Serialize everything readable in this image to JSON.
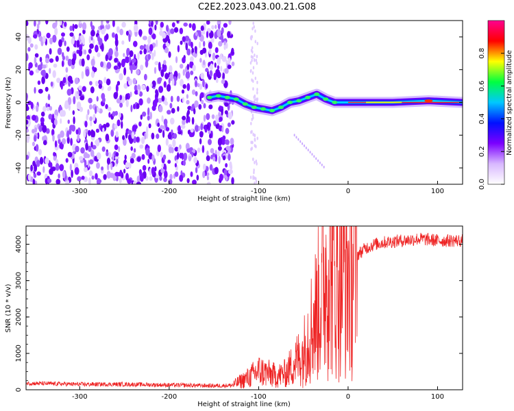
{
  "title": "C2E2.2023.043.00.21.G08",
  "chart_data": [
    {
      "type": "heatmap",
      "xlabel": "Height of straight line (km)",
      "ylabel": "Frequency (Hz)",
      "xlim": [
        -360,
        128
      ],
      "ylim": [
        -50,
        50
      ],
      "xticks": [
        -300,
        -200,
        -100,
        0,
        100
      ],
      "yticks": [
        -40,
        -20,
        0,
        20,
        40
      ],
      "colorbar": {
        "label": "Normalized spectral amplitude",
        "range": [
          0,
          1
        ],
        "ticks": [
          0.0,
          0.2,
          0.4,
          0.6,
          0.8
        ],
        "colormap": [
          "#ffffff",
          "#d8b8ff",
          "#7b00ff",
          "#0010ff",
          "#00c8ff",
          "#00ff40",
          "#ffff00",
          "#ff0000",
          "#ff0090"
        ]
      },
      "noise_region_x": [
        -360,
        -140
      ],
      "signal_track": [
        {
          "x": -155,
          "y": 3
        },
        {
          "x": -145,
          "y": 4
        },
        {
          "x": -135,
          "y": 3
        },
        {
          "x": -125,
          "y": 2
        },
        {
          "x": -115,
          "y": -1
        },
        {
          "x": -105,
          "y": -3
        },
        {
          "x": -95,
          "y": -4
        },
        {
          "x": -85,
          "y": -5
        },
        {
          "x": -75,
          "y": -3
        },
        {
          "x": -65,
          "y": 0
        },
        {
          "x": -55,
          "y": 1
        },
        {
          "x": -45,
          "y": 3
        },
        {
          "x": -35,
          "y": 5
        },
        {
          "x": -25,
          "y": 2
        },
        {
          "x": -15,
          "y": 0
        },
        {
          "x": 0,
          "y": 0
        },
        {
          "x": 50,
          "y": 0
        },
        {
          "x": 90,
          "y": 1
        },
        {
          "x": 128,
          "y": 0
        }
      ]
    },
    {
      "type": "line",
      "xlabel": "Height of straight line (km)",
      "ylabel": "SNR (10 * v/v)",
      "xlim": [
        -360,
        128
      ],
      "ylim": [
        0,
        4500
      ],
      "xticks": [
        -300,
        -200,
        -100,
        0,
        100
      ],
      "yticks": [
        0,
        1000,
        2000,
        3000,
        4000
      ],
      "series_color": "#ee2222",
      "series": [
        {
          "x": [
            -360,
            -300,
            -250,
            -200,
            -150,
            -130,
            -110,
            -100,
            -90,
            -80,
            -70,
            -60,
            -50,
            -45,
            -40,
            -35,
            -30,
            -25,
            -20,
            -15,
            -10,
            -5,
            0,
            5,
            10,
            20,
            30,
            40,
            60,
            80,
            100,
            128
          ],
          "y": [
            180,
            150,
            150,
            130,
            110,
            120,
            350,
            520,
            450,
            380,
            450,
            750,
            1000,
            1500,
            1800,
            2200,
            2600,
            3200,
            3800,
            3000,
            3200,
            3400,
            3200,
            3400,
            3700,
            3900,
            4000,
            4050,
            4100,
            4150,
            4100,
            4100
          ]
        }
      ]
    }
  ]
}
